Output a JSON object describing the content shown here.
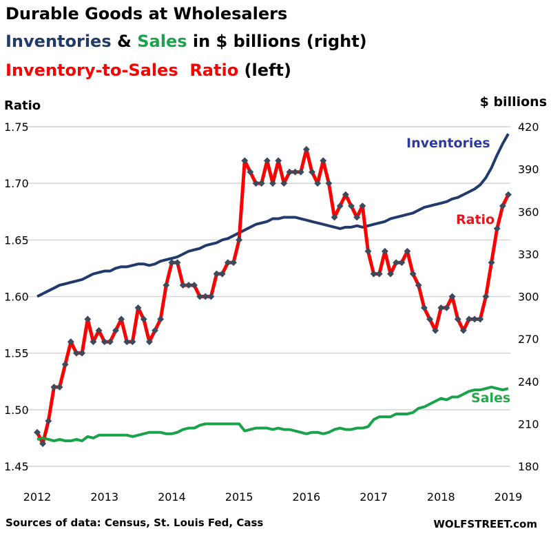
{
  "chart_data": {
    "type": "line",
    "title_lines": [
      {
        "parts": [
          {
            "text": "Durable Goods at Wholesalers",
            "color": "#000000"
          }
        ]
      },
      {
        "parts": [
          {
            "text": "Inventories",
            "color": "#1f3a6b"
          },
          {
            "text": " & ",
            "color": "#000000"
          },
          {
            "text": "Sales",
            "color": "#1aa24a"
          },
          {
            "text": " in $ billions (right)",
            "color": "#000000"
          }
        ]
      },
      {
        "parts": [
          {
            "text": "Inventory-to-Sales  Ratio",
            "color": "#ff0000"
          },
          {
            "text": " (left)",
            "color": "#000000"
          }
        ]
      }
    ],
    "ylabel_left": "Ratio",
    "ylabel_right": "$ billions",
    "ylim_left": [
      1.45,
      1.75
    ],
    "ylim_right": [
      180,
      420
    ],
    "yticks_left": [
      "1.75",
      "1.70",
      "1.65",
      "1.60",
      "1.55",
      "1.50",
      "1.45"
    ],
    "yticks_right": [
      "420",
      "390",
      "360",
      "330",
      "300",
      "270",
      "240",
      "210",
      "180"
    ],
    "xticks": [
      "2012",
      "2013",
      "2014",
      "2015",
      "2016",
      "2017",
      "2018",
      "2019"
    ],
    "x_start": "2012-01",
    "x_end": "2019-01",
    "frequency": "monthly",
    "grid": true,
    "series": [
      {
        "name": "Inventories",
        "axis": "right",
        "color": "#1f3a6b",
        "markers": false,
        "values": [
          300,
          302,
          304,
          306,
          308,
          309,
          310,
          311,
          312,
          314,
          316,
          317,
          318,
          318,
          320,
          321,
          321,
          322,
          323,
          323,
          322,
          323,
          325,
          326,
          327,
          328,
          330,
          332,
          333,
          334,
          336,
          337,
          338,
          340,
          341,
          343,
          345,
          347,
          349,
          351,
          352,
          353,
          355,
          355,
          356,
          356,
          356,
          355,
          354,
          353,
          352,
          351,
          350,
          349,
          348,
          349,
          349,
          350,
          349,
          350,
          351,
          352,
          353,
          355,
          356,
          357,
          358,
          359,
          361,
          363,
          364,
          365,
          366,
          367,
          369,
          370,
          372,
          374,
          376,
          379,
          384,
          391,
          400,
          408,
          415
        ]
      },
      {
        "name": "Ratio",
        "axis": "left",
        "color": "#ff0000",
        "markers": true,
        "values": [
          1.48,
          1.47,
          1.49,
          1.52,
          1.52,
          1.54,
          1.56,
          1.55,
          1.55,
          1.58,
          1.56,
          1.57,
          1.56,
          1.56,
          1.57,
          1.58,
          1.56,
          1.56,
          1.59,
          1.58,
          1.56,
          1.57,
          1.58,
          1.61,
          1.63,
          1.63,
          1.61,
          1.61,
          1.61,
          1.6,
          1.6,
          1.6,
          1.62,
          1.62,
          1.63,
          1.63,
          1.65,
          1.72,
          1.71,
          1.7,
          1.7,
          1.72,
          1.7,
          1.72,
          1.7,
          1.71,
          1.71,
          1.71,
          1.73,
          1.71,
          1.7,
          1.72,
          1.7,
          1.67,
          1.68,
          1.69,
          1.68,
          1.67,
          1.68,
          1.64,
          1.62,
          1.62,
          1.64,
          1.62,
          1.63,
          1.63,
          1.64,
          1.62,
          1.61,
          1.59,
          1.58,
          1.57,
          1.59,
          1.59,
          1.6,
          1.58,
          1.57,
          1.58,
          1.58,
          1.58,
          1.6,
          1.63,
          1.66,
          1.68,
          1.69
        ]
      },
      {
        "name": "Sales",
        "axis": "right",
        "color": "#1aa24a",
        "markers": false,
        "values": [
          199,
          200,
          199,
          198,
          199,
          198,
          198,
          199,
          198,
          201,
          200,
          202,
          202,
          202,
          202,
          202,
          202,
          201,
          202,
          203,
          204,
          204,
          204,
          203,
          203,
          204,
          206,
          207,
          207,
          209,
          210,
          210,
          210,
          210,
          210,
          210,
          210,
          205,
          206,
          207,
          207,
          207,
          206,
          207,
          206,
          206,
          205,
          204,
          203,
          204,
          204,
          203,
          204,
          206,
          207,
          206,
          206,
          207,
          207,
          208,
          213,
          215,
          215,
          215,
          217,
          217,
          217,
          218,
          221,
          222,
          224,
          226,
          228,
          227,
          229,
          229,
          231,
          233,
          234,
          234,
          235,
          236,
          235,
          234,
          235
        ]
      }
    ],
    "series_labels": [
      "Inventories",
      "Ratio",
      "Sales"
    ]
  },
  "footer": {
    "source": "Sources of data: Census, St. Louis Fed, Cass",
    "brand": "WOLFSTREET.com"
  }
}
